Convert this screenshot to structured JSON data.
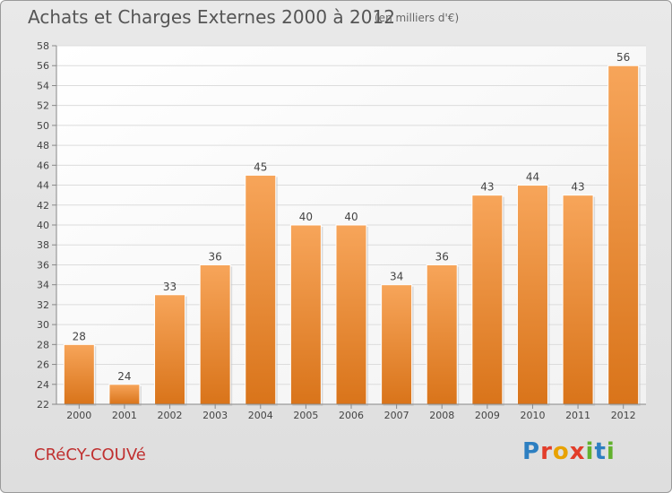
{
  "header": {
    "title": "Achats et Charges Externes 2000 à 2012",
    "subtitle": "(en milliers d'€)"
  },
  "footer": {
    "town": "CRéCY-COUVé",
    "logo_letters": [
      "P",
      "r",
      "o",
      "x",
      "i",
      "t",
      "i"
    ]
  },
  "chart_data": {
    "type": "bar",
    "categories": [
      "2000",
      "2001",
      "2002",
      "2003",
      "2004",
      "2005",
      "2006",
      "2007",
      "2008",
      "2009",
      "2010",
      "2011",
      "2012"
    ],
    "values": [
      28,
      24,
      33,
      36,
      45,
      40,
      40,
      34,
      36,
      43,
      44,
      43,
      56
    ],
    "ylim": [
      22,
      58
    ],
    "yticks": [
      22,
      24,
      26,
      28,
      30,
      32,
      34,
      36,
      38,
      40,
      42,
      44,
      46,
      48,
      50,
      52,
      54,
      56,
      58
    ],
    "grid": true,
    "bar_color": "#f0923a"
  }
}
